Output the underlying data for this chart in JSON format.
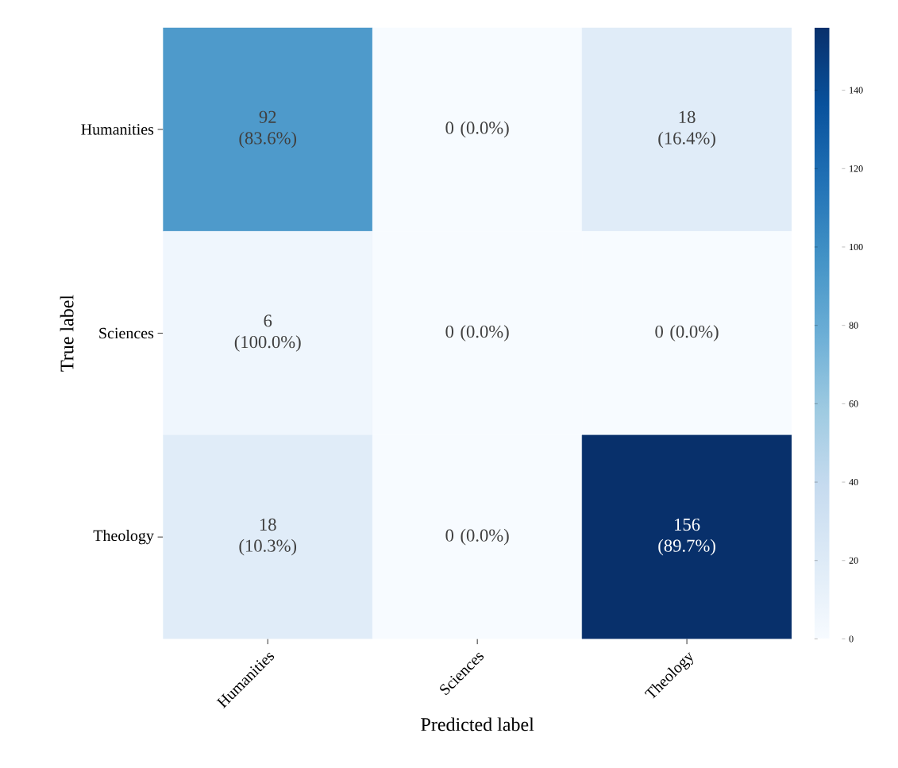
{
  "chart_data": {
    "type": "heatmap",
    "xlabel": "Predicted label",
    "ylabel": "True label",
    "categories": [
      "Humanities",
      "Sciences",
      "Theology"
    ],
    "y_categories": [
      "Humanities",
      "Sciences",
      "Theology"
    ],
    "cells": [
      [
        92,
        0,
        18
      ],
      [
        6,
        0,
        0
      ],
      [
        18,
        0,
        156
      ]
    ],
    "cell_labels": [
      [
        "92 (83.6%)",
        "0 (0.0%)",
        "18 (16.4%)"
      ],
      [
        "6 (100.0%)",
        "0 (0.0%)",
        "0 (0.0%)"
      ],
      [
        "18 (10.3%)",
        "0 (0.0%)",
        "156 (89.7%)"
      ]
    ],
    "clim": [
      0,
      156
    ],
    "cticks": [
      0,
      20,
      40,
      60,
      80,
      100,
      120,
      140
    ]
  }
}
